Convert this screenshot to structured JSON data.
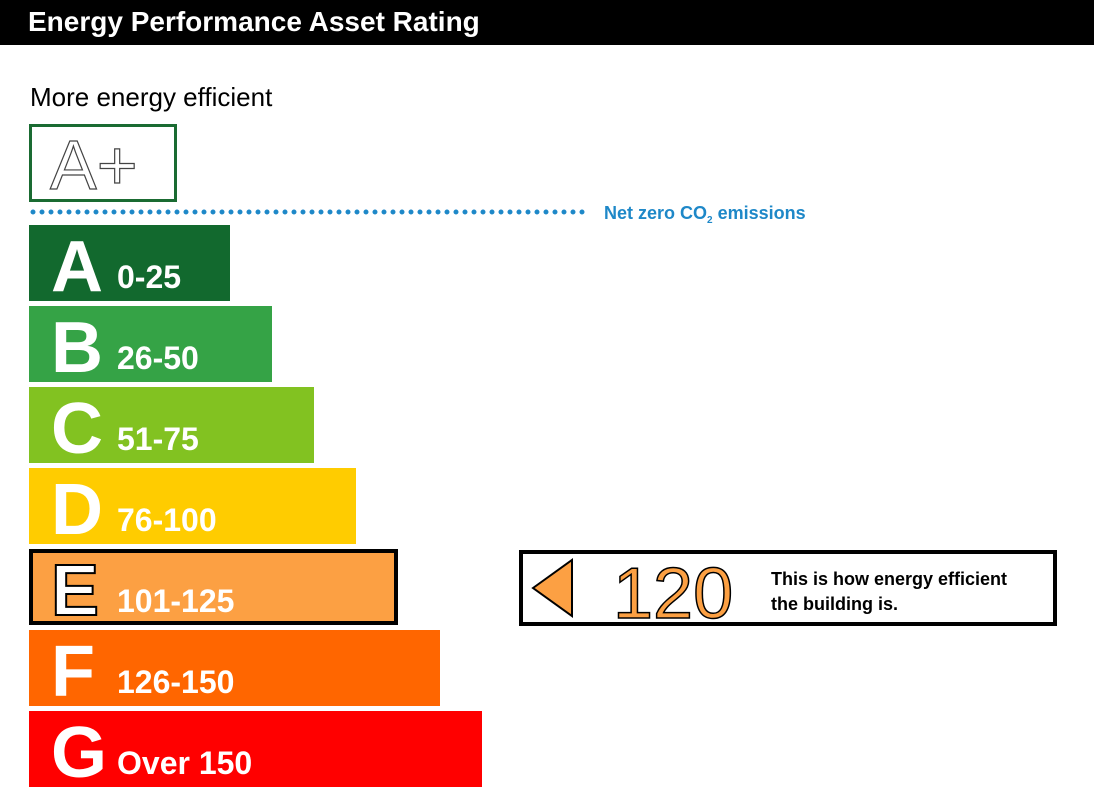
{
  "header": {
    "title": "Energy Performance Asset Rating"
  },
  "labels": {
    "more_efficient": "More energy efficient",
    "aplus": "A+",
    "net_zero_prefix": "Net zero CO",
    "net_zero_sub": "2",
    "net_zero_suffix": " emissions"
  },
  "chart_data": {
    "type": "bar",
    "title": "Energy Performance Asset Rating",
    "categories": [
      "A",
      "B",
      "C",
      "D",
      "E",
      "F",
      "G"
    ],
    "bands": [
      {
        "letter": "A",
        "range": "0-25",
        "color": "#12692e"
      },
      {
        "letter": "B",
        "range": "26-50",
        "color": "#35a346"
      },
      {
        "letter": "C",
        "range": "51-75",
        "color": "#82c221"
      },
      {
        "letter": "D",
        "range": "76-100",
        "color": "#ffcc00"
      },
      {
        "letter": "E",
        "range": "101-125",
        "color": "#fca043"
      },
      {
        "letter": "F",
        "range": "126-150",
        "color": "#ff6600"
      },
      {
        "letter": "G",
        "range": "Over 150",
        "color": "#ff0000"
      }
    ],
    "current_band": "E",
    "current_rating": {
      "value": 120,
      "value_label": "120",
      "color": "#fca043",
      "description_line1": "This is how energy efficient",
      "description_line2": "the building is."
    }
  }
}
